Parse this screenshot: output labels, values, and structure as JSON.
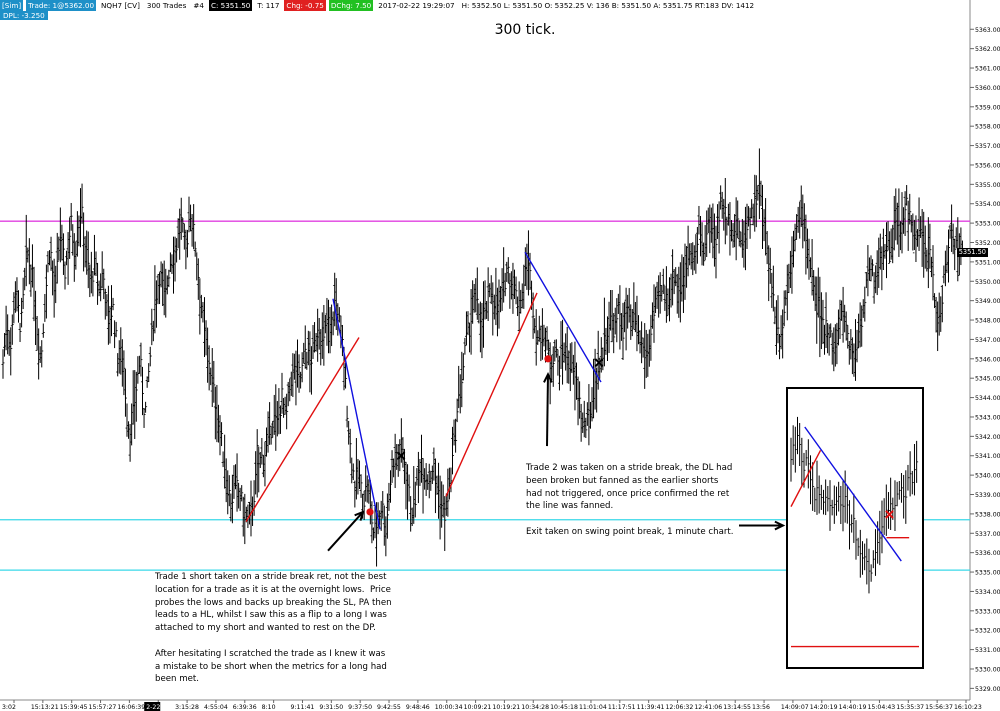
{
  "header": {
    "account": "[Sim]",
    "trade": "Trade: 1@5362.00",
    "symbol": "NQH7 [CV]",
    "period": "300 Trades",
    "index": "#4",
    "close": "C: 5351.50",
    "ticks": "T: 117",
    "change": "Chg: -0.75",
    "dchange": "DChg: 7.50",
    "datetime": "2017-02-22 19:29:07",
    "stats": "H: 5352.50 L: 5351.50 O: 5352.25 V: 136 B: 5351.50 A: 5351.75 RT:183 DV: 1412",
    "dpl": "DPL: -3.250"
  },
  "colors": {
    "magenta": "#e040e0",
    "cyan": "#38d8e8",
    "red": "#e01010",
    "blue": "#1010e0",
    "bar": "#000000",
    "trade_marker": "#e01010"
  },
  "chart_data": {
    "type": "ohlc",
    "title": "300 tick.",
    "ylim": [
      5328.4,
      5364.2
    ],
    "price_ticks": [
      5363,
      5362,
      5361,
      5360,
      5359,
      5358,
      5357,
      5356,
      5355,
      5354,
      5353,
      5352,
      5351,
      5350,
      5349,
      5348,
      5347,
      5346,
      5345,
      5344,
      5343,
      5342,
      5341,
      5340,
      5339,
      5338,
      5337,
      5336,
      5335,
      5334,
      5333,
      5332,
      5331,
      5330,
      5329
    ],
    "price_tick_labels": [
      "5363.00",
      "5362.00",
      "5361.00",
      "5360.00",
      "5359.00",
      "5358.00",
      "5357.00",
      "5356.00",
      "5355.00",
      "5354.00",
      "5353.00",
      "5352.00",
      "5351.00",
      "5350.00",
      "5349.00",
      "5348.00",
      "5347.00",
      "5346.00",
      "5345.00",
      "5344.00",
      "5343.00",
      "5342.00",
      "5341.00",
      "5340.00",
      "5339.00",
      "5338.00",
      "5337.00",
      "5336.00",
      "5335.00",
      "5334.00",
      "5333.00",
      "5332.00",
      "5331.00",
      "5330.00",
      "5329.00"
    ],
    "last_price_label": "5351.50",
    "last_price": 5351.5,
    "time_labels": [
      "3:02",
      "15:13:21",
      "15:39:45",
      "15:57:27",
      "16:06:39",
      "2-22",
      "3:15:28",
      "4:55:04",
      "6:39:36",
      "8:10",
      "9:11:41",
      "9:31:50",
      "9:37:50",
      "9:42:55",
      "9:48:46",
      "10:00:34",
      "10:09:21",
      "10:19:21",
      "10:34:28",
      "10:45:18",
      "11:01:04",
      "11:17:51",
      "11:39:41",
      "12:06:32",
      "12:41:06",
      "13:14:55",
      "13:56",
      "14:09:07",
      "14:20:19",
      "14:40:19",
      "15:04:43",
      "15:35:37",
      "15:56:37",
      "16:10:23"
    ],
    "highlighted_time_label": "2-22",
    "bar_path": [
      [
        0,
        5345.8
      ],
      [
        4,
        5348
      ],
      [
        8,
        5346.5
      ],
      [
        12,
        5349.8
      ],
      [
        18,
        5347.5
      ],
      [
        24,
        5351.5
      ],
      [
        30,
        5350
      ],
      [
        35,
        5347
      ],
      [
        38,
        5346
      ],
      [
        42,
        5349
      ],
      [
        47,
        5352
      ],
      [
        52,
        5349
      ],
      [
        57,
        5352.5
      ],
      [
        62,
        5350.5
      ],
      [
        68,
        5353
      ],
      [
        72,
        5351.5
      ],
      [
        78,
        5353.8
      ],
      [
        82,
        5352
      ],
      [
        87,
        5350
      ],
      [
        92,
        5350.8
      ],
      [
        96,
        5349.5
      ],
      [
        100,
        5350.5
      ],
      [
        105,
        5348
      ],
      [
        110,
        5348.6
      ],
      [
        115,
        5346
      ],
      [
        120,
        5346.3
      ],
      [
        124,
        5343
      ],
      [
        128,
        5342
      ],
      [
        132,
        5344
      ],
      [
        137,
        5346
      ],
      [
        142,
        5343
      ],
      [
        147,
        5346
      ],
      [
        152,
        5349
      ],
      [
        157,
        5350.5
      ],
      [
        162,
        5349
      ],
      [
        167,
        5351
      ],
      [
        172,
        5351.5
      ],
      [
        178,
        5353
      ],
      [
        183,
        5351.5
      ],
      [
        187,
        5353.8
      ],
      [
        192,
        5352
      ],
      [
        198,
        5349
      ],
      [
        202,
        5347
      ],
      [
        206,
        5346
      ],
      [
        210,
        5344.5
      ],
      [
        215,
        5343
      ],
      [
        219,
        5341.5
      ],
      [
        223,
        5340
      ],
      [
        228,
        5338.5
      ],
      [
        232,
        5339.5
      ],
      [
        237,
        5339
      ],
      [
        241,
        5338
      ],
      [
        246,
        5337.5
      ],
      [
        251,
        5339
      ],
      [
        255,
        5340.5
      ],
      [
        260,
        5341
      ],
      [
        265,
        5341.5
      ],
      [
        270,
        5343
      ],
      [
        274,
        5342.5
      ],
      [
        279,
        5344
      ],
      [
        283,
        5342.8
      ],
      [
        288,
        5345
      ],
      [
        293,
        5345.5
      ],
      [
        298,
        5345
      ],
      [
        302,
        5346.5
      ],
      [
        307,
        5345.8
      ],
      [
        311,
        5346.5
      ],
      [
        316,
        5347.8
      ],
      [
        320,
        5346.5
      ],
      [
        324,
        5348
      ],
      [
        328,
        5347.5
      ],
      [
        332,
        5349
      ],
      [
        336,
        5348
      ],
      [
        340,
        5346.5
      ],
      [
        344,
        5343.5
      ],
      [
        348,
        5341
      ],
      [
        352,
        5339.5
      ],
      [
        356,
        5340
      ],
      [
        360,
        5338.5
      ],
      [
        364,
        5339.5
      ],
      [
        368,
        5338
      ],
      [
        371,
        5336.9
      ],
      [
        375,
        5337.8
      ],
      [
        379,
        5338.5
      ],
      [
        383,
        5337.2
      ],
      [
        387,
        5339.5
      ],
      [
        391,
        5341
      ],
      [
        395,
        5340.8
      ],
      [
        399,
        5341.5
      ],
      [
        402,
        5340.5
      ],
      [
        406,
        5339
      ],
      [
        410,
        5338
      ],
      [
        414,
        5339.5
      ],
      [
        418,
        5341
      ],
      [
        422,
        5340
      ],
      [
        426,
        5339.8
      ],
      [
        430,
        5340.5
      ],
      [
        434,
        5339.5
      ],
      [
        438,
        5338.5
      ],
      [
        442,
        5338
      ],
      [
        446,
        5339
      ],
      [
        450,
        5341
      ],
      [
        455,
        5343.5
      ],
      [
        459,
        5345
      ],
      [
        463,
        5346.8
      ],
      [
        467,
        5347.8
      ],
      [
        471,
        5349
      ],
      [
        475,
        5348.5
      ],
      [
        479,
        5348
      ],
      [
        483,
        5348.5
      ],
      [
        488,
        5349.5
      ],
      [
        492,
        5349
      ],
      [
        496,
        5348.7
      ],
      [
        500,
        5349.3
      ],
      [
        504,
        5350.8
      ],
      [
        508,
        5350
      ],
      [
        512,
        5349.5
      ],
      [
        516,
        5348.7
      ],
      [
        520,
        5349.5
      ],
      [
        524,
        5351
      ],
      [
        528,
        5350
      ],
      [
        532,
        5347.5
      ],
      [
        536,
        5347
      ],
      [
        540,
        5347.5
      ],
      [
        544,
        5346.5
      ],
      [
        548,
        5345.9
      ],
      [
        552,
        5346.5
      ],
      [
        556,
        5345.5
      ],
      [
        560,
        5346.5
      ],
      [
        564,
        5346.2
      ],
      [
        568,
        5345.5
      ],
      [
        572,
        5345
      ],
      [
        576,
        5344
      ],
      [
        580,
        5342.5
      ],
      [
        584,
        5342.5
      ],
      [
        588,
        5343.5
      ],
      [
        592,
        5345
      ],
      [
        596,
        5345.5
      ],
      [
        600,
        5346.5
      ],
      [
        604,
        5347.5
      ],
      [
        608,
        5348
      ],
      [
        612,
        5347.5
      ],
      [
        616,
        5348.5
      ],
      [
        620,
        5347.5
      ],
      [
        624,
        5348.6
      ],
      [
        628,
        5347.5
      ],
      [
        632,
        5348
      ],
      [
        636,
        5347
      ],
      [
        640,
        5346.5
      ],
      [
        644,
        5346
      ],
      [
        648,
        5347.5
      ],
      [
        652,
        5348.5
      ],
      [
        656,
        5349
      ],
      [
        660,
        5349.5
      ],
      [
        664,
        5349
      ],
      [
        668,
        5349.8
      ],
      [
        672,
        5350.5
      ],
      [
        676,
        5349.5
      ],
      [
        680,
        5350
      ],
      [
        684,
        5351
      ],
      [
        688,
        5352
      ],
      [
        692,
        5351
      ],
      [
        696,
        5352.5
      ],
      [
        700,
        5351.5
      ],
      [
        704,
        5352.5
      ],
      [
        708,
        5353
      ],
      [
        712,
        5352
      ],
      [
        716,
        5353.5
      ],
      [
        720,
        5354
      ],
      [
        724,
        5353
      ],
      [
        728,
        5353.2
      ],
      [
        732,
        5352.5
      ],
      [
        736,
        5352.8
      ],
      [
        740,
        5351.5
      ],
      [
        744,
        5353
      ],
      [
        748,
        5353.5
      ],
      [
        752,
        5354
      ],
      [
        756,
        5355
      ],
      [
        760,
        5353
      ],
      [
        764,
        5352
      ],
      [
        768,
        5350
      ],
      [
        772,
        5348.5
      ],
      [
        776,
        5347
      ],
      [
        780,
        5348
      ],
      [
        784,
        5349.5
      ],
      [
        788,
        5351
      ],
      [
        792,
        5352.5
      ],
      [
        796,
        5353
      ],
      [
        800,
        5353.5
      ],
      [
        804,
        5352
      ],
      [
        808,
        5350.5
      ],
      [
        812,
        5349
      ],
      [
        816,
        5348.5
      ],
      [
        820,
        5347.5
      ],
      [
        824,
        5348
      ],
      [
        828,
        5347
      ],
      [
        832,
        5346.5
      ],
      [
        836,
        5347.5
      ],
      [
        840,
        5348.5
      ],
      [
        844,
        5347.5
      ],
      [
        848,
        5346.5
      ],
      [
        852,
        5346
      ],
      [
        856,
        5347.5
      ],
      [
        860,
        5348.5
      ],
      [
        864,
        5350
      ],
      [
        868,
        5350.5
      ],
      [
        872,
        5350
      ],
      [
        876,
        5351
      ],
      [
        880,
        5351.5
      ],
      [
        884,
        5352
      ],
      [
        888,
        5351.5
      ],
      [
        892,
        5353
      ],
      [
        896,
        5352.5
      ],
      [
        900,
        5353
      ],
      [
        904,
        5354
      ],
      [
        908,
        5353
      ],
      [
        912,
        5352
      ],
      [
        916,
        5352.5
      ],
      [
        920,
        5352
      ],
      [
        924,
        5351.5
      ],
      [
        928,
        5351
      ],
      [
        932,
        5349
      ],
      [
        936,
        5348
      ],
      [
        940,
        5349.5
      ],
      [
        944,
        5351
      ],
      [
        948,
        5353
      ],
      [
        952,
        5352
      ],
      [
        956,
        5351.5
      ],
      [
        960,
        5351.5
      ]
    ],
    "horizontal_lines": [
      {
        "price": 5353.1,
        "color": "#e040e0"
      },
      {
        "price": 5337.7,
        "color": "#38d8e8"
      },
      {
        "price": 5335.1,
        "color": "#38d8e8"
      }
    ],
    "trend_lines": [
      {
        "x1": 243,
        "y1": 5337.6,
        "x2": 356,
        "y2": 5347.1,
        "color": "#e01010"
      },
      {
        "x1": 330,
        "y1": 5349.1,
        "x2": 377,
        "y2": 5337.2,
        "color": "#1010e0"
      },
      {
        "x1": 443,
        "y1": 5338.9,
        "x2": 534,
        "y2": 5349.4,
        "color": "#e01010"
      },
      {
        "x1": 522,
        "y1": 5351.5,
        "x2": 598,
        "y2": 5344.8,
        "color": "#1010e0"
      }
    ],
    "markers": [
      {
        "type": "dot",
        "x": 367,
        "y": 5338.1,
        "color": "#e01010"
      },
      {
        "type": "x",
        "x": 398,
        "y": 5341.0,
        "color": "#000000"
      },
      {
        "type": "dot",
        "x": 545,
        "y": 5346.0,
        "color": "#e01010"
      },
      {
        "type": "x",
        "x": 596,
        "y": 5345.8,
        "color": "#000000"
      }
    ],
    "arrows": [
      {
        "x1": 325,
        "y1": 5336.1,
        "x2": 360,
        "y2": 5338.1
      },
      {
        "x1": 544,
        "y1": 5341.5,
        "x2": 545,
        "y2": 5345.2
      },
      {
        "x1": 736,
        "y1": 5337.4,
        "x2": 780,
        "y2": 5337.4
      }
    ]
  },
  "inset": {
    "description_label": "1 minute chart inset",
    "bar_path": [
      [
        0,
        5342.2
      ],
      [
        4,
        5342.8
      ],
      [
        8,
        5343
      ],
      [
        12,
        5341.5
      ],
      [
        16,
        5342
      ],
      [
        20,
        5341
      ],
      [
        24,
        5340.2
      ],
      [
        28,
        5340.5
      ],
      [
        32,
        5339.5
      ],
      [
        36,
        5340.3
      ],
      [
        40,
        5339.6
      ],
      [
        44,
        5340
      ],
      [
        48,
        5339.8
      ],
      [
        52,
        5340
      ],
      [
        56,
        5339.7
      ],
      [
        60,
        5338.5
      ],
      [
        64,
        5338.7
      ],
      [
        68,
        5337.6
      ],
      [
        72,
        5337.1
      ],
      [
        76,
        5337
      ],
      [
        80,
        5336.2
      ],
      [
        84,
        5336.8
      ],
      [
        88,
        5337.5
      ],
      [
        92,
        5338.5
      ],
      [
        96,
        5339
      ],
      [
        100,
        5339.8
      ],
      [
        104,
        5339.5
      ],
      [
        108,
        5340.5
      ],
      [
        112,
        5340.5
      ],
      [
        116,
        5340.2
      ],
      [
        120,
        5341
      ],
      [
        124,
        5341.2
      ],
      [
        128,
        5342
      ]
    ],
    "lines": [
      {
        "x1": 0,
        "y1": 5339.6,
        "x2": 30,
        "y2": 5342.5,
        "color": "#e01010"
      },
      {
        "x1": 14,
        "y1": 5343.7,
        "x2": 112,
        "y2": 5336.8,
        "color": "#1010e0"
      },
      {
        "x1": 97,
        "y1": 5338.0,
        "x2": 120,
        "y2": 5338.0,
        "color": "#e01010"
      },
      {
        "x1": 0,
        "y1": 5332.4,
        "x2": 130,
        "y2": 5332.4,
        "color": "#e01010"
      }
    ],
    "markers": [
      {
        "type": "x",
        "x": 100,
        "y": 5339.2,
        "color": "#e01010"
      }
    ]
  },
  "notes": {
    "trade1": "Trade 1 short taken on a stride break ret, not the best\nlocation for a trade as it is at the overnight lows.  Price\nprobes the lows and backs up breaking the SL, PA then\nleads to a HL, whilst I saw this as a flip to a long I was\nattached to my short and wanted to rest on the DP.\n\nAfter hesitating I scratched the trade as I knew it was\na mistake to be short when the metrics for a long had\nbeen met.",
    "trade2": "Trade 2 was taken on a stride break, the DL had\nbeen broken but fanned as the earlier shorts\nhad not triggered, once price confirmed the ret\nthe line was fanned.",
    "exit": "Exit taken on swing point break, 1 minute chart."
  }
}
